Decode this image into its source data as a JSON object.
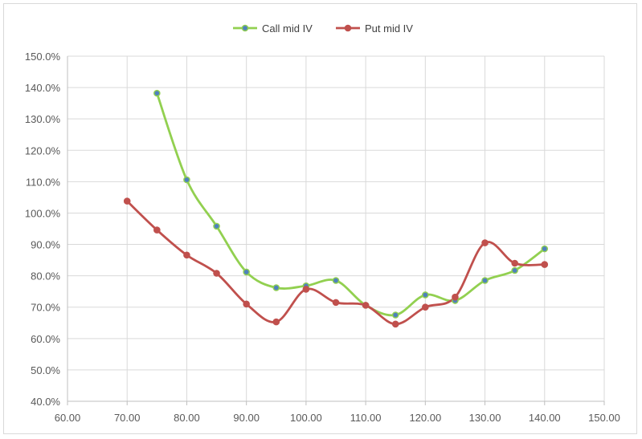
{
  "chart_data": {
    "type": "line",
    "title": "",
    "xlabel": "",
    "ylabel": "",
    "xlim": [
      60,
      150
    ],
    "ylim": [
      40,
      150
    ],
    "x_ticks": [
      60,
      70,
      80,
      90,
      100,
      110,
      120,
      130,
      140,
      150
    ],
    "y_ticks": [
      40,
      50,
      60,
      70,
      80,
      90,
      100,
      110,
      120,
      130,
      140,
      150
    ],
    "x_tick_labels": [
      "60.00",
      "70.00",
      "80.00",
      "90.00",
      "100.00",
      "110.00",
      "120.00",
      "130.00",
      "140.00",
      "150.00"
    ],
    "y_tick_labels": [
      "40.0%",
      "50.0%",
      "60.0%",
      "70.0%",
      "80.0%",
      "90.0%",
      "100.0%",
      "110.0%",
      "120.0%",
      "130.0%",
      "140.0%",
      "150.0%"
    ],
    "grid": true,
    "smooth": true,
    "legend": "top",
    "series": [
      {
        "name": "Call mid IV",
        "color": "#92d050",
        "marker_color": "#4f81bd",
        "x": [
          75,
          80,
          85,
          90,
          95,
          100,
          105,
          110,
          115,
          120,
          125,
          130,
          135,
          140
        ],
        "y": [
          138.2,
          110.6,
          95.8,
          81.2,
          76.2,
          76.8,
          78.5,
          70.6,
          67.5,
          73.9,
          72.1,
          78.5,
          81.7,
          88.6
        ]
      },
      {
        "name": "Put mid IV",
        "color": "#c0504d",
        "marker_color": "#c0504d",
        "x": [
          70,
          75,
          80,
          85,
          90,
          95,
          100,
          105,
          110,
          115,
          120,
          125,
          130,
          135,
          140
        ],
        "y": [
          103.8,
          94.6,
          86.6,
          80.8,
          71.0,
          65.3,
          75.7,
          71.5,
          70.6,
          64.6,
          70.0,
          73.2,
          90.5,
          84.0,
          83.6
        ]
      }
    ]
  }
}
